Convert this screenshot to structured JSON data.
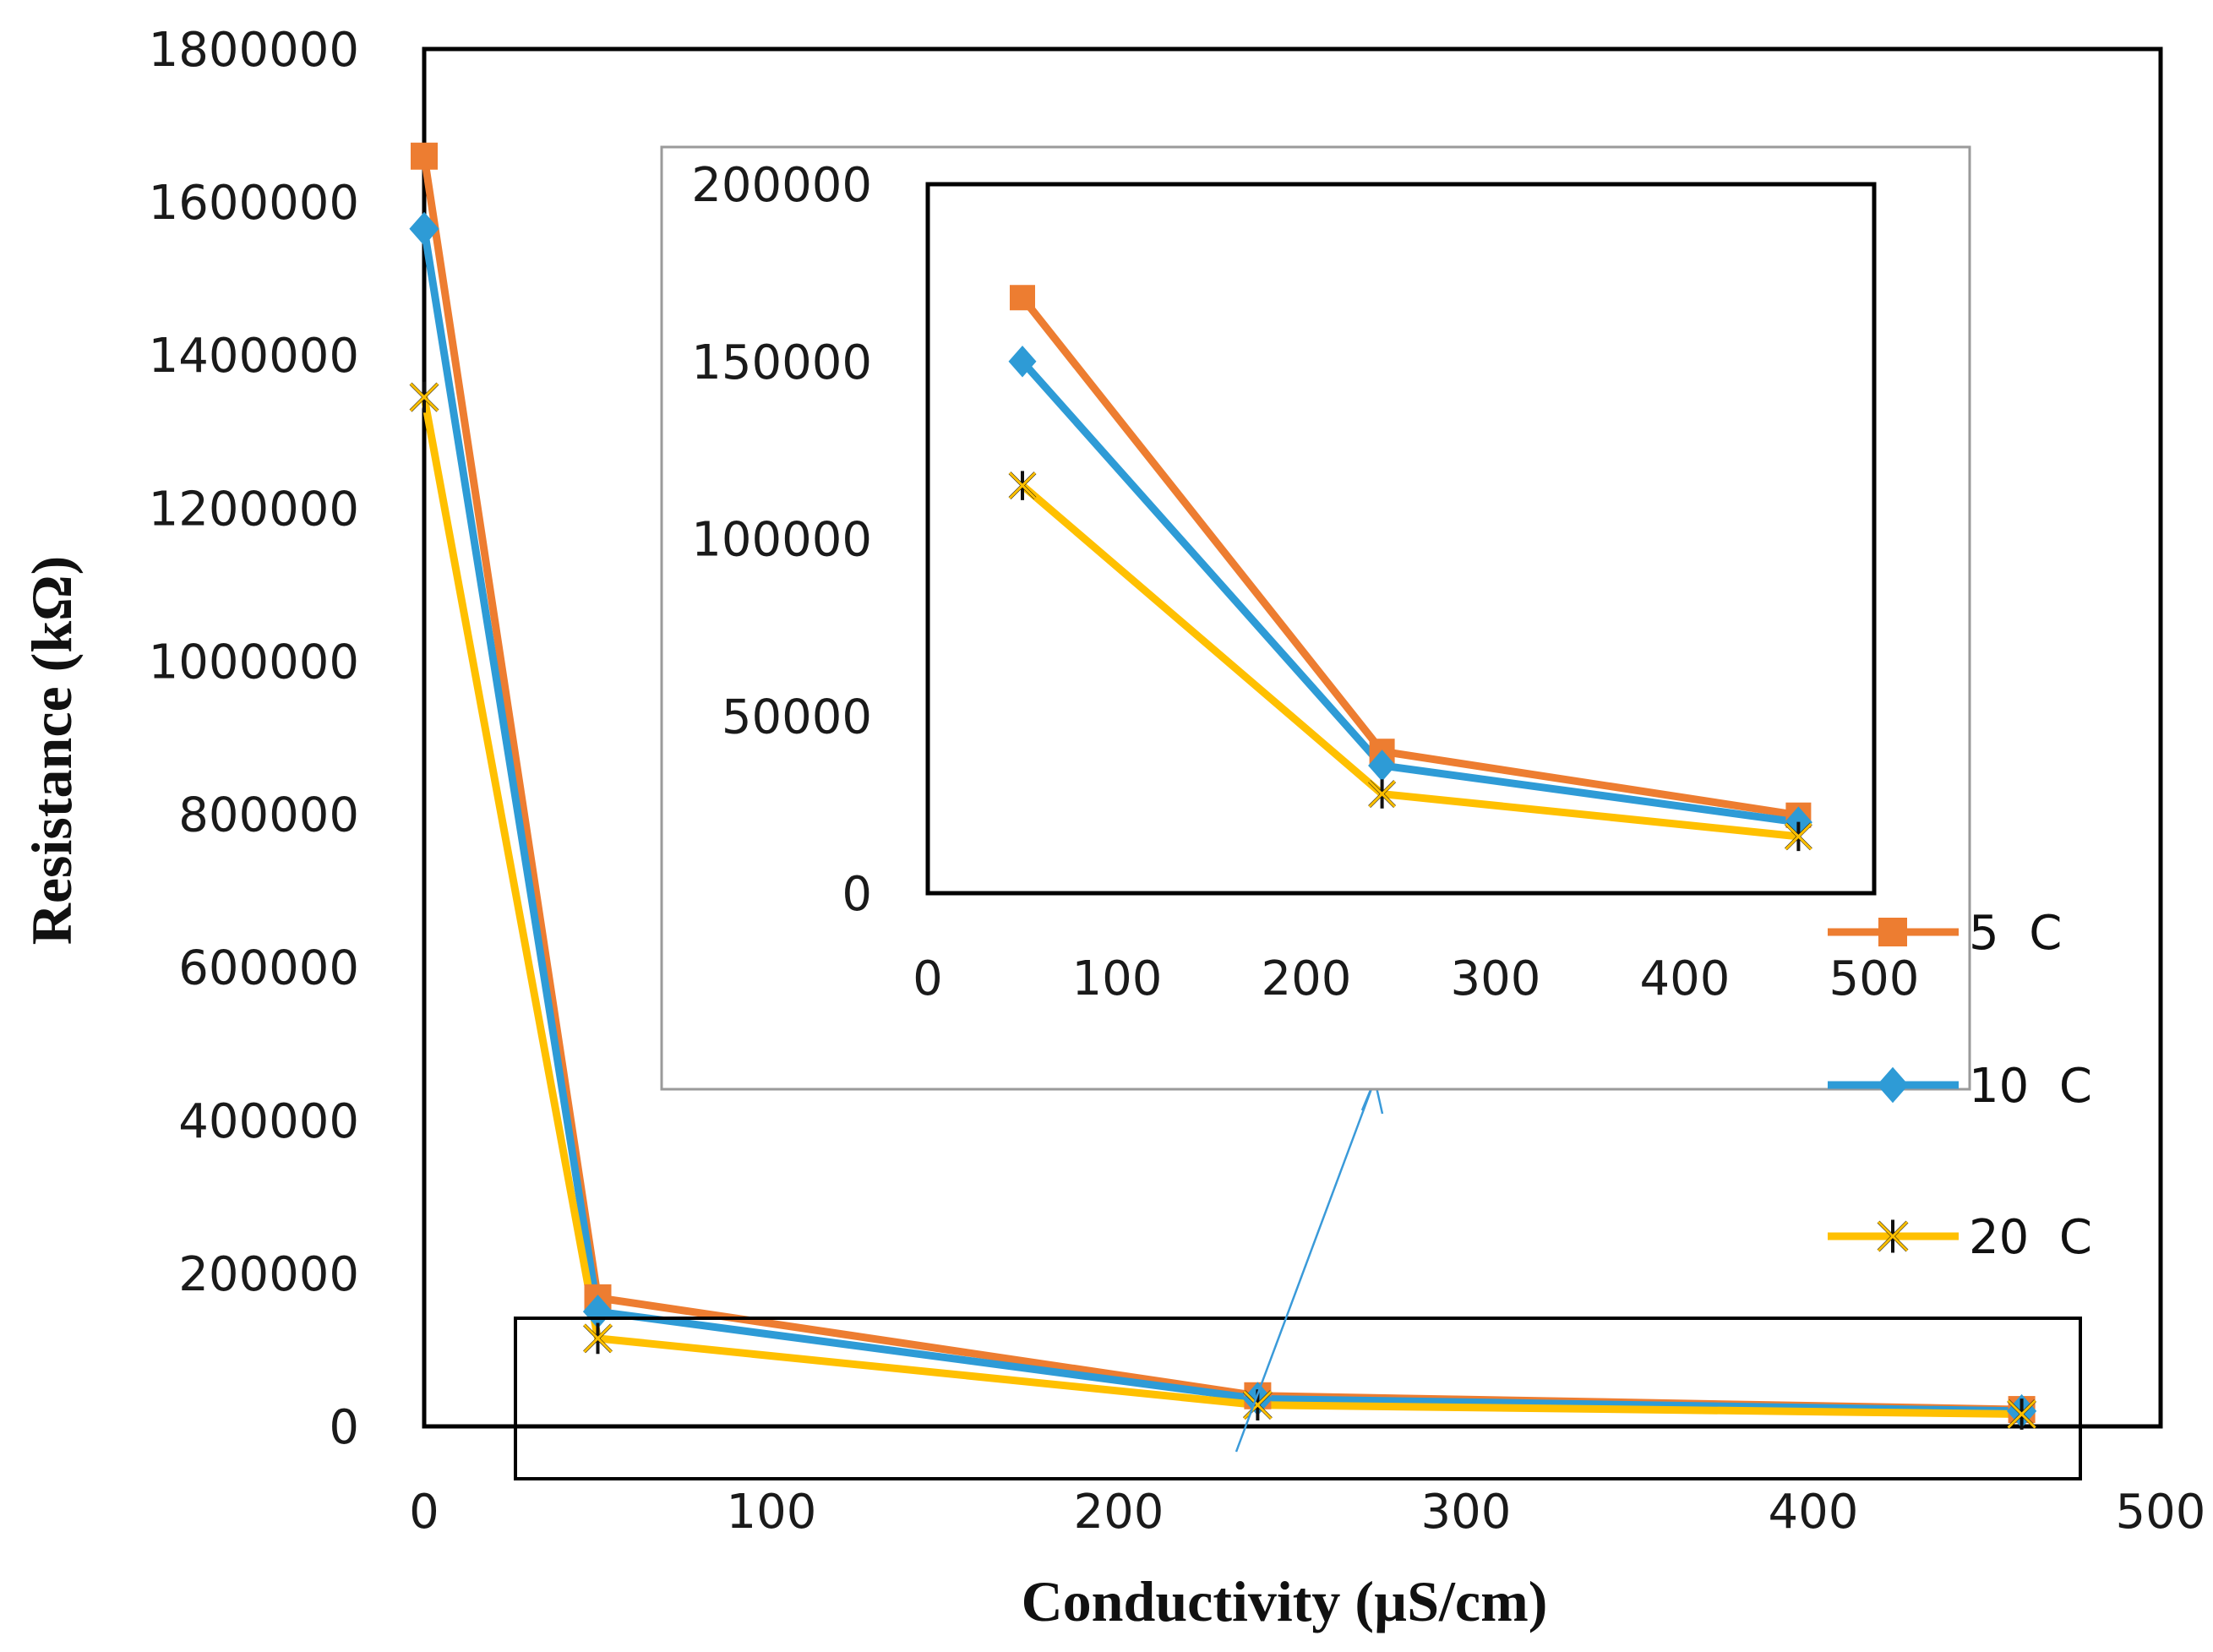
{
  "chart_data": {
    "type": "line",
    "xlabel": "Conductivity (µS/cm)",
    "ylabel": "Resistance (kΩ)",
    "xlim": [
      0,
      500
    ],
    "ylim": [
      0,
      1800000
    ],
    "x_ticks": [
      "0",
      "100",
      "200",
      "300",
      "400",
      "500"
    ],
    "y_ticks": [
      "0",
      "200000",
      "400000",
      "600000",
      "800000",
      "1000000",
      "1200000",
      "1400000",
      "1600000",
      "1800000"
    ],
    "x": [
      0,
      50,
      240,
      460
    ],
    "series": [
      {
        "name": "5  C",
        "color": "#ED7D31",
        "marker": "square",
        "values": [
          1660000,
          168000,
          40000,
          22000
        ]
      },
      {
        "name": "10  C",
        "color": "#2E9BD6",
        "marker": "diamond",
        "values": [
          1565000,
          150000,
          36000,
          20000
        ]
      },
      {
        "name": "20  C",
        "color": "#FFC000",
        "marker": "star",
        "values": [
          1345000,
          115000,
          28000,
          16000
        ]
      }
    ],
    "legend_position": "right",
    "inset": {
      "xlim": [
        0,
        500
      ],
      "ylim": [
        0,
        200000
      ],
      "x_ticks": [
        "0",
        "100",
        "200",
        "300",
        "400",
        "500"
      ],
      "y_ticks": [
        "0",
        "50000",
        "100000",
        "150000",
        "200000"
      ],
      "x": [
        50,
        240,
        460
      ],
      "series": [
        {
          "name": "5  C",
          "values": [
            168000,
            40000,
            22000
          ]
        },
        {
          "name": "10  C",
          "values": [
            150000,
            36000,
            20000
          ]
        },
        {
          "name": "20  C",
          "values": [
            115000,
            28000,
            16000
          ]
        }
      ]
    }
  }
}
